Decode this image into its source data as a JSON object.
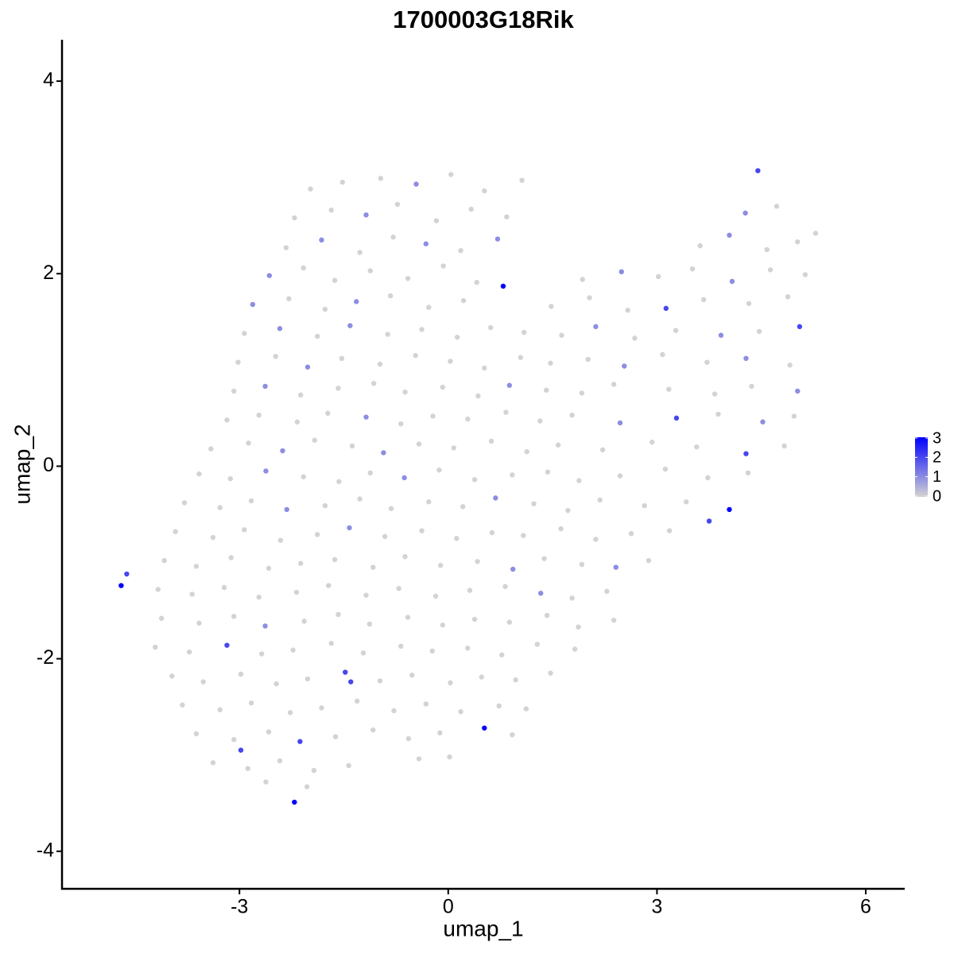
{
  "chart_data": {
    "type": "scatter",
    "title": "1700003G18Rik",
    "x_label": "umap_1",
    "y_label": "umap_2",
    "x": [
      -1.98,
      -1.52,
      -0.97,
      -0.46,
      0.04,
      0.52,
      1.06,
      -2.21,
      -1.68,
      -1.18,
      -0.73,
      -0.17,
      0.33,
      0.84,
      4.27,
      4.72,
      -2.33,
      -1.82,
      -1.27,
      -0.79,
      -0.32,
      0.18,
      0.71,
      3.62,
      4.04,
      4.58,
      5.02,
      5.28,
      -2.57,
      -2.08,
      -1.63,
      -1.12,
      -0.58,
      -0.07,
      0.41,
      1.93,
      2.49,
      3.02,
      3.51,
      4.08,
      4.63,
      5.13,
      -2.81,
      -2.29,
      -1.77,
      -1.32,
      -0.83,
      -0.28,
      0.22,
      0.79,
      1.48,
      2.03,
      2.58,
      3.13,
      3.67,
      4.32,
      4.88,
      -2.93,
      -2.42,
      -1.88,
      -1.41,
      -0.87,
      -0.38,
      0.13,
      0.61,
      1.09,
      1.63,
      2.12,
      2.68,
      3.27,
      3.92,
      4.47,
      5.05,
      -3.02,
      -2.48,
      -2.02,
      -1.53,
      -0.98,
      -0.47,
      0.03,
      0.52,
      1.04,
      1.47,
      2.01,
      2.53,
      3.08,
      3.72,
      4.28,
      4.91,
      -3.08,
      -2.63,
      -2.12,
      -1.58,
      -1.07,
      -0.62,
      -0.08,
      0.43,
      0.88,
      1.41,
      1.92,
      2.38,
      3.17,
      3.83,
      4.36,
      5.02,
      -3.18,
      -2.72,
      -2.17,
      -1.73,
      -1.18,
      -0.68,
      -0.22,
      0.28,
      0.83,
      1.32,
      1.78,
      2.47,
      3.28,
      3.88,
      4.52,
      4.97,
      -3.41,
      -2.87,
      -2.38,
      -1.92,
      -1.38,
      -0.93,
      -0.42,
      0.08,
      0.62,
      1.13,
      1.58,
      2.22,
      2.93,
      3.57,
      4.28,
      4.83,
      -3.58,
      -3.13,
      -2.62,
      -2.08,
      -1.57,
      -1.12,
      -0.63,
      -0.13,
      0.38,
      0.92,
      1.43,
      1.88,
      2.47,
      3.12,
      3.73,
      4.31,
      -3.79,
      -3.28,
      -2.83,
      -2.32,
      -1.77,
      -1.27,
      -0.82,
      -0.28,
      0.21,
      0.68,
      1.23,
      1.72,
      2.18,
      2.82,
      3.42,
      -3.92,
      -3.38,
      -2.93,
      -2.41,
      -1.88,
      -1.42,
      -0.91,
      -0.38,
      0.12,
      0.63,
      1.08,
      1.62,
      2.12,
      2.63,
      3.18,
      -4.08,
      -3.62,
      -3.12,
      -2.58,
      -2.12,
      -1.63,
      -1.08,
      -0.62,
      -0.11,
      0.42,
      0.93,
      1.38,
      1.92,
      2.41,
      2.88,
      -4.17,
      -3.68,
      -3.22,
      -2.72,
      -2.18,
      -1.72,
      -1.18,
      -0.71,
      -0.18,
      0.31,
      0.82,
      1.33,
      1.78,
      2.28,
      -4.12,
      -3.58,
      -3.08,
      -2.63,
      -2.07,
      -1.58,
      -1.13,
      -0.58,
      -0.08,
      0.38,
      0.88,
      1.42,
      1.87,
      2.38,
      -4.21,
      -3.72,
      -3.18,
      -2.68,
      -2.23,
      -1.68,
      -1.22,
      -0.68,
      -0.23,
      0.28,
      0.77,
      1.28,
      1.82,
      -3.97,
      -3.52,
      -2.98,
      -2.47,
      -2.02,
      -1.48,
      -0.98,
      -0.52,
      0.03,
      0.48,
      0.97,
      1.47,
      -3.82,
      -3.28,
      -2.83,
      -2.27,
      -1.82,
      -1.31,
      -0.78,
      -0.32,
      0.18,
      0.73,
      1.12,
      -3.62,
      -3.08,
      -2.58,
      -2.13,
      -1.62,
      -1.08,
      -0.57,
      -0.12,
      0.52,
      0.92,
      -3.38,
      -2.88,
      -2.42,
      -1.93,
      -1.43,
      -0.42,
      0.02,
      -2.62,
      -2.03,
      -4.7,
      -4.62,
      -2.21,
      -2.98,
      4.04,
      4.45,
      3.75,
      -1.4
    ],
    "values": [
      2.88,
      2.95,
      2.99,
      2.93,
      3.03,
      2.86,
      2.97,
      2.58,
      2.66,
      2.61,
      2.72,
      2.55,
      2.67,
      2.59,
      2.63,
      2.7,
      2.27,
      2.35,
      2.22,
      2.38,
      2.31,
      2.24,
      2.36,
      2.29,
      2.4,
      2.25,
      2.33,
      2.42,
      1.98,
      2.06,
      1.93,
      2.03,
      1.95,
      2.08,
      1.91,
      1.94,
      2.02,
      1.97,
      2.05,
      1.92,
      2.04,
      1.99,
      1.68,
      1.74,
      1.63,
      1.71,
      1.77,
      1.65,
      1.72,
      1.87,
      1.66,
      1.75,
      1.62,
      1.64,
      1.73,
      1.69,
      1.76,
      1.38,
      1.43,
      1.35,
      1.46,
      1.37,
      1.42,
      1.34,
      1.44,
      1.39,
      1.36,
      1.45,
      1.33,
      1.41,
      1.36,
      1.4,
      1.45,
      1.08,
      1.14,
      1.03,
      1.12,
      1.06,
      1.15,
      1.09,
      1.02,
      1.13,
      1.07,
      1.11,
      1.04,
      1.16,
      1.08,
      1.12,
      1.05,
      0.78,
      0.83,
      0.74,
      0.81,
      0.86,
      0.77,
      0.82,
      0.73,
      0.84,
      0.79,
      0.76,
      0.85,
      0.8,
      0.75,
      0.83,
      0.78,
      0.48,
      0.53,
      0.46,
      0.55,
      0.51,
      0.44,
      0.52,
      0.49,
      0.56,
      0.47,
      0.53,
      0.45,
      0.5,
      0.54,
      0.46,
      0.52,
      0.18,
      0.24,
      0.16,
      0.27,
      0.21,
      0.14,
      0.23,
      0.19,
      0.26,
      0.15,
      0.22,
      0.17,
      0.25,
      0.2,
      0.13,
      0.21,
      -0.08,
      -0.13,
      -0.05,
      -0.11,
      -0.16,
      -0.07,
      -0.12,
      -0.04,
      -0.14,
      -0.09,
      -0.06,
      -0.15,
      -0.1,
      -0.03,
      -0.12,
      -0.07,
      -0.38,
      -0.43,
      -0.36,
      -0.45,
      -0.41,
      -0.34,
      -0.44,
      -0.37,
      -0.42,
      -0.33,
      -0.39,
      -0.46,
      -0.35,
      -0.41,
      -0.37,
      -0.68,
      -0.74,
      -0.66,
      -0.77,
      -0.71,
      -0.64,
      -0.73,
      -0.67,
      -0.75,
      -0.69,
      -0.72,
      -0.65,
      -0.76,
      -0.7,
      -0.67,
      -0.98,
      -1.04,
      -0.95,
      -1.06,
      -1.01,
      -0.97,
      -1.05,
      -0.94,
      -1.03,
      -0.99,
      -1.07,
      -0.96,
      -1.02,
      -1.05,
      -0.98,
      -1.28,
      -1.33,
      -1.26,
      -1.36,
      -1.31,
      -1.24,
      -1.34,
      -1.27,
      -1.35,
      -1.29,
      -1.25,
      -1.32,
      -1.37,
      -1.3,
      -1.58,
      -1.63,
      -1.56,
      -1.66,
      -1.61,
      -1.54,
      -1.64,
      -1.57,
      -1.65,
      -1.59,
      -1.62,
      -1.55,
      -1.67,
      -1.6,
      -1.88,
      -1.93,
      -1.86,
      -1.95,
      -1.91,
      -1.84,
      -1.94,
      -1.87,
      -1.92,
      -1.89,
      -1.96,
      -1.85,
      -1.9,
      -2.18,
      -2.24,
      -2.16,
      -2.26,
      -2.21,
      -2.14,
      -2.23,
      -2.17,
      -2.25,
      -2.19,
      -2.22,
      -2.15,
      -2.48,
      -2.53,
      -2.46,
      -2.56,
      -2.51,
      -2.44,
      -2.54,
      -2.47,
      -2.55,
      -2.49,
      -2.52,
      -2.78,
      -2.84,
      -2.76,
      -2.86,
      -2.81,
      -2.74,
      -2.83,
      -2.77,
      -2.72,
      -2.79,
      -3.08,
      -3.14,
      -3.06,
      -3.16,
      -3.11,
      -3.04,
      -3.02,
      -3.28,
      -3.33,
      -1.24,
      -1.12,
      -3.49,
      -2.95,
      -0.45,
      3.07,
      -0.57,
      -2.24
    ],
    "expression": [
      0,
      0,
      0,
      1,
      0,
      0,
      0,
      0,
      0,
      1,
      0,
      0,
      0,
      0,
      1,
      0,
      0,
      1,
      0,
      0,
      1,
      0,
      1,
      0,
      1,
      0,
      0,
      0,
      1,
      0,
      0,
      0,
      0,
      0,
      0,
      0,
      1,
      0,
      0,
      1,
      0,
      0,
      1,
      0,
      0,
      1,
      0,
      0,
      0,
      3,
      0,
      0,
      0,
      2,
      0,
      0,
      0,
      0,
      1,
      0,
      1,
      0,
      0,
      0,
      0,
      0,
      0,
      1,
      0,
      0,
      1,
      0,
      2,
      0,
      0,
      1,
      0,
      0,
      0,
      0,
      0,
      0,
      0,
      0,
      1,
      0,
      0,
      1,
      0,
      0,
      1,
      0,
      0,
      0,
      0,
      0,
      0,
      1,
      0,
      0,
      0,
      0,
      0,
      0,
      1,
      0,
      0,
      0,
      0,
      1,
      0,
      0,
      0,
      0,
      0,
      0,
      1,
      2,
      0,
      1,
      0,
      0,
      0,
      1,
      0,
      0,
      1,
      0,
      0,
      0,
      0,
      0,
      0,
      0,
      0,
      2,
      0,
      0,
      0,
      1,
      0,
      0,
      0,
      1,
      0,
      0,
      0,
      0,
      0,
      0,
      0,
      0,
      0,
      0,
      0,
      0,
      1,
      0,
      0,
      0,
      0,
      0,
      1,
      0,
      0,
      0,
      0,
      0,
      0,
      0,
      0,
      0,
      0,
      1,
      0,
      0,
      0,
      0,
      0,
      0,
      0,
      0,
      0,
      0,
      0,
      0,
      0,
      0,
      0,
      0,
      0,
      0,
      0,
      1,
      0,
      0,
      1,
      0,
      0,
      0,
      0,
      0,
      0,
      0,
      0,
      0,
      0,
      0,
      0,
      1,
      0,
      0,
      0,
      0,
      0,
      1,
      0,
      0,
      0,
      0,
      0,
      0,
      0,
      0,
      0,
      0,
      0,
      0,
      2,
      0,
      0,
      0,
      0,
      0,
      0,
      0,
      0,
      0,
      0,
      0,
      0,
      0,
      0,
      0,
      2,
      0,
      0,
      0,
      0,
      0,
      0,
      0,
      0,
      0,
      0,
      0,
      0,
      0,
      0,
      0,
      0,
      0,
      0,
      0,
      0,
      2,
      0,
      0,
      0,
      0,
      3,
      0,
      0,
      0,
      0,
      0,
      0,
      0,
      0,
      0,
      0,
      3,
      2,
      3,
      2,
      3,
      2,
      2,
      2
    ],
    "xlim": [
      -5.55,
      6.56
    ],
    "ylim": [
      -4.39,
      4.43
    ],
    "xticks": [
      -3,
      0,
      3,
      6
    ],
    "yticks": [
      -4,
      -2,
      0,
      2,
      4
    ],
    "color_low": "#d3d3d3",
    "color_high": "#0000ff",
    "color_range": [
      0,
      3
    ],
    "color_ticks": [
      0,
      1,
      2,
      3
    ]
  }
}
